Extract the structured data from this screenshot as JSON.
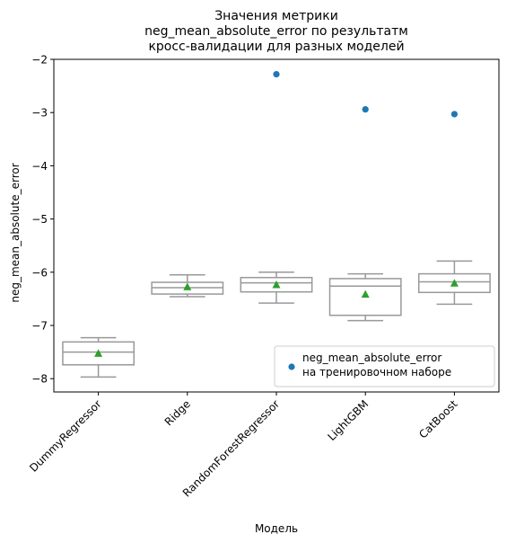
{
  "chart_data": {
    "type": "box",
    "title_lines": [
      "Значения метрики",
      "neg_mean_absolute_error по результатм",
      "кросс-валидации для разных моделей"
    ],
    "xlabel": "Модель",
    "ylabel": "neg_mean_absolute_error",
    "ylim": [
      -8.25,
      -2.0
    ],
    "yticks": [
      -8,
      -7,
      -6,
      -5,
      -4,
      -3,
      -2
    ],
    "ytick_labels": [
      "−8",
      "−7",
      "−6",
      "−5",
      "−4",
      "−3",
      "−2"
    ],
    "categories": [
      "DummyRegressor",
      "Ridge",
      "RandomForestRegressor",
      "LightGBM",
      "CatBoost"
    ],
    "boxes": [
      {
        "whislo": -7.97,
        "q1": -7.74,
        "med": -7.5,
        "q3": -7.31,
        "whishi": -7.23,
        "mean": -7.53
      },
      {
        "whislo": -6.46,
        "q1": -6.41,
        "med": -6.29,
        "q3": -6.19,
        "whishi": -6.05,
        "mean": -6.28
      },
      {
        "whislo": -6.58,
        "q1": -6.37,
        "med": -6.2,
        "q3": -6.1,
        "whishi": -6.0,
        "mean": -6.24
      },
      {
        "whislo": -6.91,
        "q1": -6.81,
        "med": -6.26,
        "q3": -6.12,
        "whishi": -6.03,
        "mean": -6.42
      },
      {
        "whislo": -6.6,
        "q1": -6.38,
        "med": -6.18,
        "q3": -6.03,
        "whishi": -5.79,
        "mean": -6.21
      }
    ],
    "train_points": [
      {
        "category": "RandomForestRegressor",
        "value": -2.28
      },
      {
        "category": "LightGBM",
        "value": -2.94
      },
      {
        "category": "CatBoost",
        "value": -3.03
      }
    ],
    "legend": {
      "placement": "lower-right",
      "label_lines": [
        "neg_mean_absolute_error",
        "на тренировочном наборе"
      ]
    },
    "colors": {
      "box": "#999999",
      "mean_marker": "#2ca02c",
      "train_point": "#1f77b4",
      "axes": "#000000"
    },
    "grid": false
  }
}
